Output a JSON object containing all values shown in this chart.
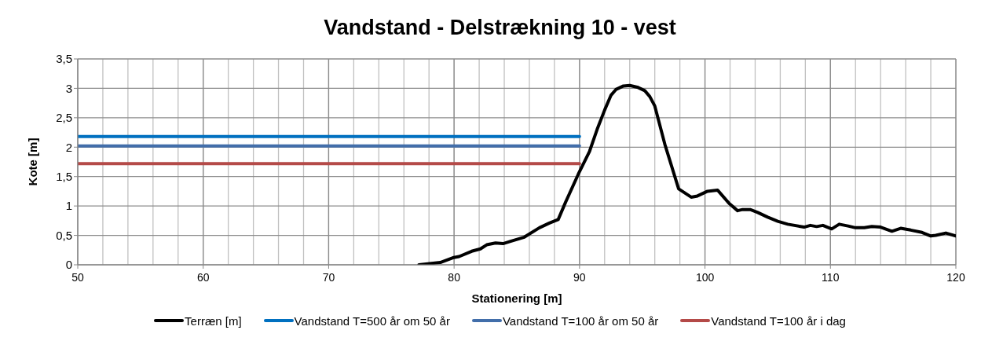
{
  "chart_data": {
    "type": "line",
    "title": "Vandstand - Delstrækning 10 - vest",
    "xlabel": "Stationering [m]",
    "ylabel": "Kote [m]",
    "xlim": [
      50,
      120
    ],
    "xticks": [
      50,
      {
        "value": 52,
        "label": null
      },
      {
        "value": 54,
        "label": null
      },
      {
        "value": 56,
        "label": null
      },
      {
        "value": 58,
        "label": null
      },
      60,
      {
        "value": 62,
        "label": null
      },
      {
        "value": 64,
        "label": null
      },
      {
        "value": 66,
        "label": null
      },
      {
        "value": 68,
        "label": null
      },
      70,
      {
        "value": 72,
        "label": null
      },
      {
        "value": 74,
        "label": null
      },
      {
        "value": 76,
        "label": null
      },
      {
        "value": 78,
        "label": null
      },
      80,
      {
        "value": 82,
        "label": null
      },
      {
        "value": 84,
        "label": null
      },
      {
        "value": 86,
        "label": null
      },
      {
        "value": 88,
        "label": null
      },
      90,
      {
        "value": 92,
        "label": null
      },
      {
        "value": 94,
        "label": null
      },
      {
        "value": 96,
        "label": null
      },
      {
        "value": 98,
        "label": null
      },
      100,
      {
        "value": 102,
        "label": null
      },
      {
        "value": 104,
        "label": null
      },
      {
        "value": 106,
        "label": null
      },
      {
        "value": 108,
        "label": null
      },
      110,
      {
        "value": 112,
        "label": null
      },
      {
        "value": 114,
        "label": null
      },
      {
        "value": 116,
        "label": null
      },
      {
        "value": 118,
        "label": null
      },
      120
    ],
    "ylim": [
      0,
      3.5
    ],
    "yticks": [
      0,
      {
        "value": 0.5,
        "label": "0,5"
      },
      1,
      {
        "value": 1.5,
        "label": "1,5"
      },
      2,
      {
        "value": 2.5,
        "label": "2,5"
      },
      3,
      {
        "value": 3.5,
        "label": "3,5"
      }
    ],
    "grid": true,
    "legend": "bottom",
    "marker": "none",
    "line_style": "solid",
    "series": [
      {
        "name": "Terræn [m]",
        "color": "#000000",
        "x": [
          77.2,
          78.9,
          79.9,
          80.4,
          81.4,
          82.1,
          82.6,
          83.3,
          83.9,
          84.5,
          85.6,
          86.8,
          87.6,
          88.3,
          88.9,
          89.9,
          90.8,
          91.4,
          92.0,
          92.5,
          92.9,
          93.5,
          94.0,
          94.6,
          95.2,
          95.6,
          96.0,
          96.8,
          97.9,
          98.9,
          99.4,
          100.2,
          101.0,
          101.9,
          102.6,
          103.0,
          103.6,
          104.2,
          105.0,
          105.8,
          106.6,
          107.9,
          108.4,
          108.9,
          109.4,
          110.1,
          110.7,
          111.4,
          112.0,
          112.7,
          113.3,
          114.0,
          114.9,
          115.6,
          116.4,
          117.3,
          118.0,
          118.4,
          119.2,
          120.0
        ],
        "values": [
          0,
          0.04,
          0.12,
          0.14,
          0.23,
          0.27,
          0.34,
          0.37,
          0.36,
          0.4,
          0.47,
          0.63,
          0.71,
          0.77,
          1.07,
          1.54,
          1.93,
          2.3,
          2.63,
          2.88,
          2.98,
          3.04,
          3.05,
          3.02,
          2.96,
          2.86,
          2.7,
          2.05,
          1.29,
          1.15,
          1.17,
          1.25,
          1.27,
          1.05,
          0.92,
          0.94,
          0.94,
          0.89,
          0.81,
          0.74,
          0.69,
          0.64,
          0.67,
          0.65,
          0.67,
          0.61,
          0.69,
          0.66,
          0.63,
          0.63,
          0.65,
          0.64,
          0.57,
          0.62,
          0.59,
          0.55,
          0.49,
          0.5,
          0.54,
          0.49
        ]
      },
      {
        "name": "Vandstand T=500 år om 50 år",
        "color": "#0070c0",
        "x": [
          50,
          90
        ],
        "values": [
          2.18,
          2.18
        ]
      },
      {
        "name": "Vandstand T=100 år om 50 år",
        "color": "#426eaa",
        "x": [
          50,
          90
        ],
        "values": [
          2.02,
          2.02
        ]
      },
      {
        "name": "Vandstand T=100 år i dag",
        "color": "#b44a48",
        "x": [
          50,
          90
        ],
        "values": [
          1.72,
          1.72
        ]
      }
    ]
  }
}
